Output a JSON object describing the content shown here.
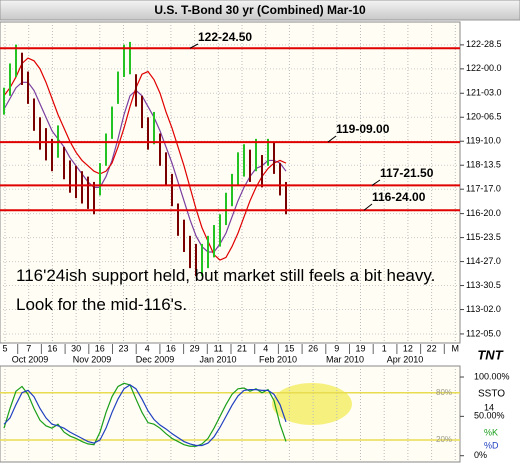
{
  "chart_data": [
    {
      "type": "ohlc",
      "title": "U.S. T-Bond 30 yr (Combined) Mar-10",
      "annotation": "116'24ish support held, but market still feels a bit heavy.  Look for the mid-116's.",
      "high": [
        121.3,
        122.2,
        122.9,
        122.6,
        121.9,
        120.9,
        120.2,
        119.8,
        119.4,
        119.9,
        119.1,
        118.6,
        118.4,
        118.2,
        118.0,
        117.8,
        118.5,
        119.6,
        120.6,
        121.9,
        122.9,
        123.0,
        121.8,
        121.0,
        120.2,
        120.4,
        119.6,
        118.9,
        118.1,
        117.0,
        116.4,
        115.8,
        115.5,
        115.5,
        115.8,
        116.2,
        116.6,
        117.4,
        118.1,
        118.9,
        119.2,
        119.0,
        119.4,
        118.8,
        119.4,
        119.3,
        118.5,
        117.8
      ],
      "low": [
        120.3,
        121.0,
        121.7,
        121.4,
        120.7,
        119.7,
        119.0,
        118.6,
        118.2,
        118.7,
        117.9,
        117.4,
        117.2,
        117.0,
        116.8,
        116.6,
        117.3,
        118.4,
        119.4,
        120.7,
        121.7,
        121.8,
        120.6,
        119.8,
        119.0,
        119.2,
        118.4,
        117.7,
        116.9,
        115.8,
        115.2,
        114.6,
        114.3,
        114.3,
        114.6,
        115.0,
        115.4,
        116.2,
        116.9,
        117.7,
        118.0,
        117.8,
        118.2,
        117.6,
        118.4,
        118.1,
        117.3,
        116.6
      ],
      "up_color": "#22c322",
      "down_color": "#7a0000",
      "lines": [
        {
          "color": "#7a3fa0",
          "values": [
            120.5,
            120.9,
            121.3,
            121.5,
            121.5,
            121.2,
            120.7,
            120.2,
            119.7,
            119.4,
            119.1,
            118.7,
            118.4,
            118.1,
            117.8,
            117.6,
            117.6,
            118.0,
            118.6,
            119.4,
            120.3,
            121.0,
            121.2,
            121.0,
            120.6,
            120.2,
            119.7,
            119.1,
            118.5,
            117.8,
            117.1,
            116.4,
            115.8,
            115.4,
            115.2,
            115.2,
            115.5,
            115.9,
            116.5,
            117.1,
            117.6,
            118.0,
            118.3,
            118.4,
            118.6,
            118.6,
            118.5,
            118.2
          ]
        },
        {
          "color": "#e00000",
          "values": [
            121.0,
            121.3,
            121.7,
            122.2,
            122.4,
            122.3,
            122.0,
            121.5,
            120.9,
            120.3,
            119.8,
            119.3,
            118.9,
            118.6,
            118.4,
            118.2,
            118.1,
            118.2,
            118.5,
            119.1,
            119.8,
            120.6,
            121.3,
            121.8,
            121.9,
            121.6,
            121.1,
            120.4,
            119.8,
            119.1,
            118.4,
            117.6,
            116.8,
            116.1,
            115.6,
            115.1,
            114.9,
            115.0,
            115.4,
            115.9,
            116.5,
            117.1,
            117.6,
            118.0,
            118.3,
            118.5,
            118.6,
            118.5
          ]
        }
      ],
      "levels": [
        {
          "value": 122.765625,
          "label": "122-24.50"
        },
        {
          "value": 119.28125,
          "label": "119-09.00"
        },
        {
          "value": 117.671875,
          "label": "117-21.50"
        },
        {
          "value": 116.75,
          "label": "116-24.00"
        }
      ],
      "level_color": "#e00000",
      "ylim": [
        111.82,
        123.74
      ],
      "yticks": [
        {
          "value": 122.890625,
          "label": "122-28.5"
        },
        {
          "value": 122,
          "label": "122-00.0"
        },
        {
          "value": 121.09375,
          "label": "121-03.0"
        },
        {
          "value": 120.203125,
          "label": "120-06.5"
        },
        {
          "value": 119.3125,
          "label": "119-10.0"
        },
        {
          "value": 118.421875,
          "label": "118-13.5"
        },
        {
          "value": 117.53125,
          "label": "117-17.0"
        },
        {
          "value": 116.625,
          "label": "116-20.0"
        },
        {
          "value": 115.734375,
          "label": "115-23.5"
        },
        {
          "value": 114.84375,
          "label": "114-27.0"
        },
        {
          "value": 113.953125,
          "label": "113-30.5"
        },
        {
          "value": 113.0625,
          "label": "113-02.0"
        },
        {
          "value": 112.15625,
          "label": "112-05.0"
        }
      ],
      "x_tick_labels": [
        "5",
        "7",
        "16",
        "30",
        "16",
        "23",
        "4",
        "16",
        "29",
        "11",
        "21",
        "4",
        "15",
        "26",
        "9",
        "19",
        "1",
        "12",
        "22",
        "M"
      ],
      "x_month_labels": [
        "Oct 2009",
        "Nov 2009",
        "Dec 2009",
        "Jan 2010",
        "Feb 2010",
        "Mar 2010",
        "Apr 2010"
      ],
      "logo": "TNT",
      "grid": true
    },
    {
      "type": "line",
      "title": "SSTO",
      "period": 14,
      "series": [
        {
          "name": "%K",
          "color": "#1a9e1a",
          "values": [
            35,
            60,
            82,
            88,
            78,
            60,
            45,
            38,
            35,
            40,
            30,
            25,
            22,
            18,
            15,
            14,
            30,
            55,
            75,
            88,
            92,
            90,
            72,
            55,
            42,
            40,
            35,
            28,
            22,
            18,
            14,
            12,
            12,
            15,
            22,
            35,
            50,
            65,
            78,
            85,
            86,
            82,
            85,
            80,
            84,
            70,
            40,
            18
          ]
        },
        {
          "name": "%D",
          "color": "#2040c0",
          "values": [
            40,
            48,
            65,
            80,
            83,
            75,
            60,
            48,
            40,
            38,
            35,
            30,
            26,
            22,
            18,
            16,
            20,
            35,
            55,
            72,
            85,
            90,
            85,
            72,
            57,
            46,
            39,
            34,
            28,
            23,
            18,
            15,
            13,
            13,
            16,
            24,
            36,
            50,
            64,
            76,
            83,
            84,
            84,
            83,
            83,
            78,
            65,
            43
          ]
        }
      ],
      "levels": [
        {
          "value": 80,
          "label": "80%"
        },
        {
          "value": 20,
          "label": "20%"
        }
      ],
      "level_color": "#e8dc50",
      "ylim": [
        -8,
        114
      ],
      "yticks": [
        {
          "value": 100,
          "label": "100.00%"
        },
        {
          "value": 50,
          "label": "50.00%"
        },
        {
          "value": 0,
          "label": "0%"
        }
      ],
      "grid": true
    }
  ]
}
